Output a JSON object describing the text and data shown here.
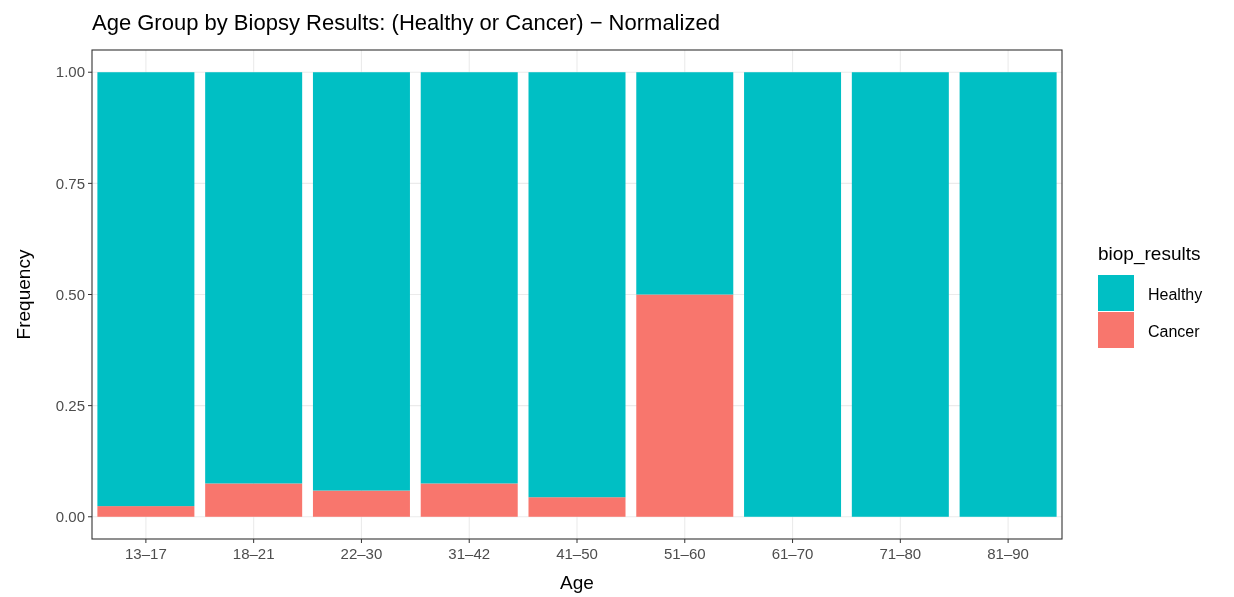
{
  "chart_data": {
    "type": "bar",
    "title": "Age Group by Biopsy Results: (Healthy or Cancer) − Normalized",
    "xlabel": "Age",
    "ylabel": "Frequency",
    "legend_title": "biop_results",
    "categories": [
      "13–17",
      "18–21",
      "22–30",
      "31–42",
      "41–50",
      "51–60",
      "61–70",
      "71–80",
      "81–90"
    ],
    "stacked": true,
    "series": [
      {
        "name": "Cancer",
        "color": "#f8766d",
        "values": [
          0.024,
          0.075,
          0.059,
          0.075,
          0.044,
          0.5,
          0,
          0,
          0
        ]
      },
      {
        "name": "Healthy",
        "color": "#00bfc4",
        "values": [
          0.976,
          0.925,
          0.941,
          0.925,
          0.956,
          0.5,
          1,
          1,
          1
        ]
      }
    ],
    "ylim": [
      -0.05,
      1.05
    ],
    "yticks": [
      {
        "value": 0,
        "label": "0.00"
      },
      {
        "value": 0.25,
        "label": "0.25"
      },
      {
        "value": 0.5,
        "label": "0.50"
      },
      {
        "value": 0.75,
        "label": "0.75"
      },
      {
        "value": 1,
        "label": "1.00"
      }
    ],
    "grid": true,
    "legend": "right"
  }
}
